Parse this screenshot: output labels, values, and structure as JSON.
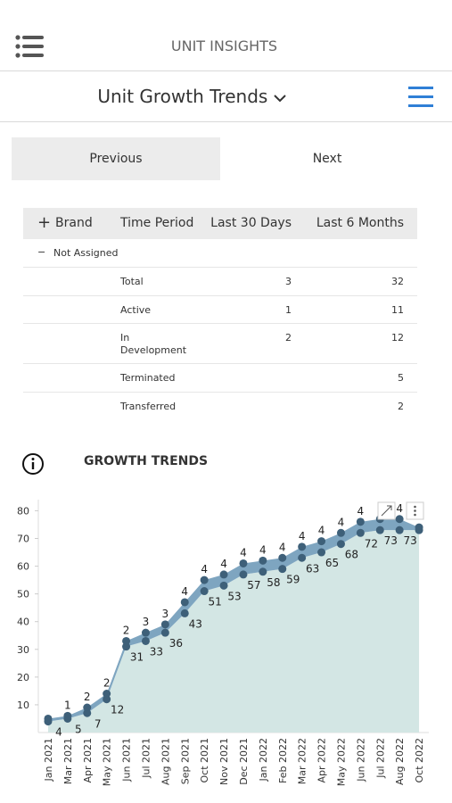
{
  "header": {
    "title": "UNIT INSIGHTS"
  },
  "view_selector": {
    "title": "Unit Growth Trends"
  },
  "tabs": [
    "Previous",
    "Next"
  ],
  "table": {
    "columns": [
      "Brand",
      "Time Period",
      "Last 30 Days",
      "Last 6 Months"
    ],
    "group": "Not Assigned",
    "rows": [
      [
        "Total",
        3,
        32
      ],
      [
        "Active",
        1,
        11
      ],
      [
        "In Development",
        2,
        12
      ],
      [
        "Terminated",
        null,
        5
      ],
      [
        "Transferred",
        null,
        2
      ]
    ]
  },
  "section_title": "GROWTH TRENDS",
  "chart_data": {
    "type": "stacked_area",
    "categories": [
      "Jan 2021",
      "Mar 2021",
      "Apr 2021",
      "May 2021",
      "Jun 2021",
      "Jul 2021",
      "Aug 2021",
      "Sep 2021",
      "Oct 2021",
      "Nov 2021",
      "Dec 2021",
      "Jan 2022",
      "Feb 2022",
      "Mar 2022",
      "Apr 2022",
      "May 2022",
      "Jun 2022",
      "Jul 2022",
      "Aug 2022",
      "Oct 2022"
    ],
    "series": [
      {
        "color": "#d3e6e4",
        "point_color": "#3e6079",
        "values": [
          4,
          5,
          7,
          12,
          31,
          33,
          36,
          43,
          51,
          53,
          57,
          58,
          59,
          63,
          65,
          68,
          72,
          73,
          73,
          73
        ],
        "value_labels": [
          "4",
          "5",
          "7",
          "12",
          "31",
          "33",
          "36",
          "43",
          "51",
          "53",
          "57",
          "58",
          "59",
          "63",
          "65",
          "68",
          "72",
          "73",
          "73",
          null
        ]
      },
      {
        "color": "#7ea5c0",
        "point_color": "#3e6079",
        "values": [
          1,
          1,
          2,
          2,
          2,
          3,
          3,
          4,
          4,
          4,
          4,
          4,
          4,
          4,
          4,
          4,
          4,
          4,
          4,
          1
        ],
        "value_labels": [
          null,
          "1",
          "2",
          "2",
          "2",
          "3",
          "3",
          "4",
          "4",
          "4",
          "4",
          "4",
          "4",
          "4",
          "4",
          "4",
          "4",
          null,
          "4",
          null
        ]
      }
    ],
    "ylim": [
      0,
      84
    ],
    "yticks": [
      10,
      20,
      30,
      40,
      50,
      60,
      70,
      80
    ]
  }
}
